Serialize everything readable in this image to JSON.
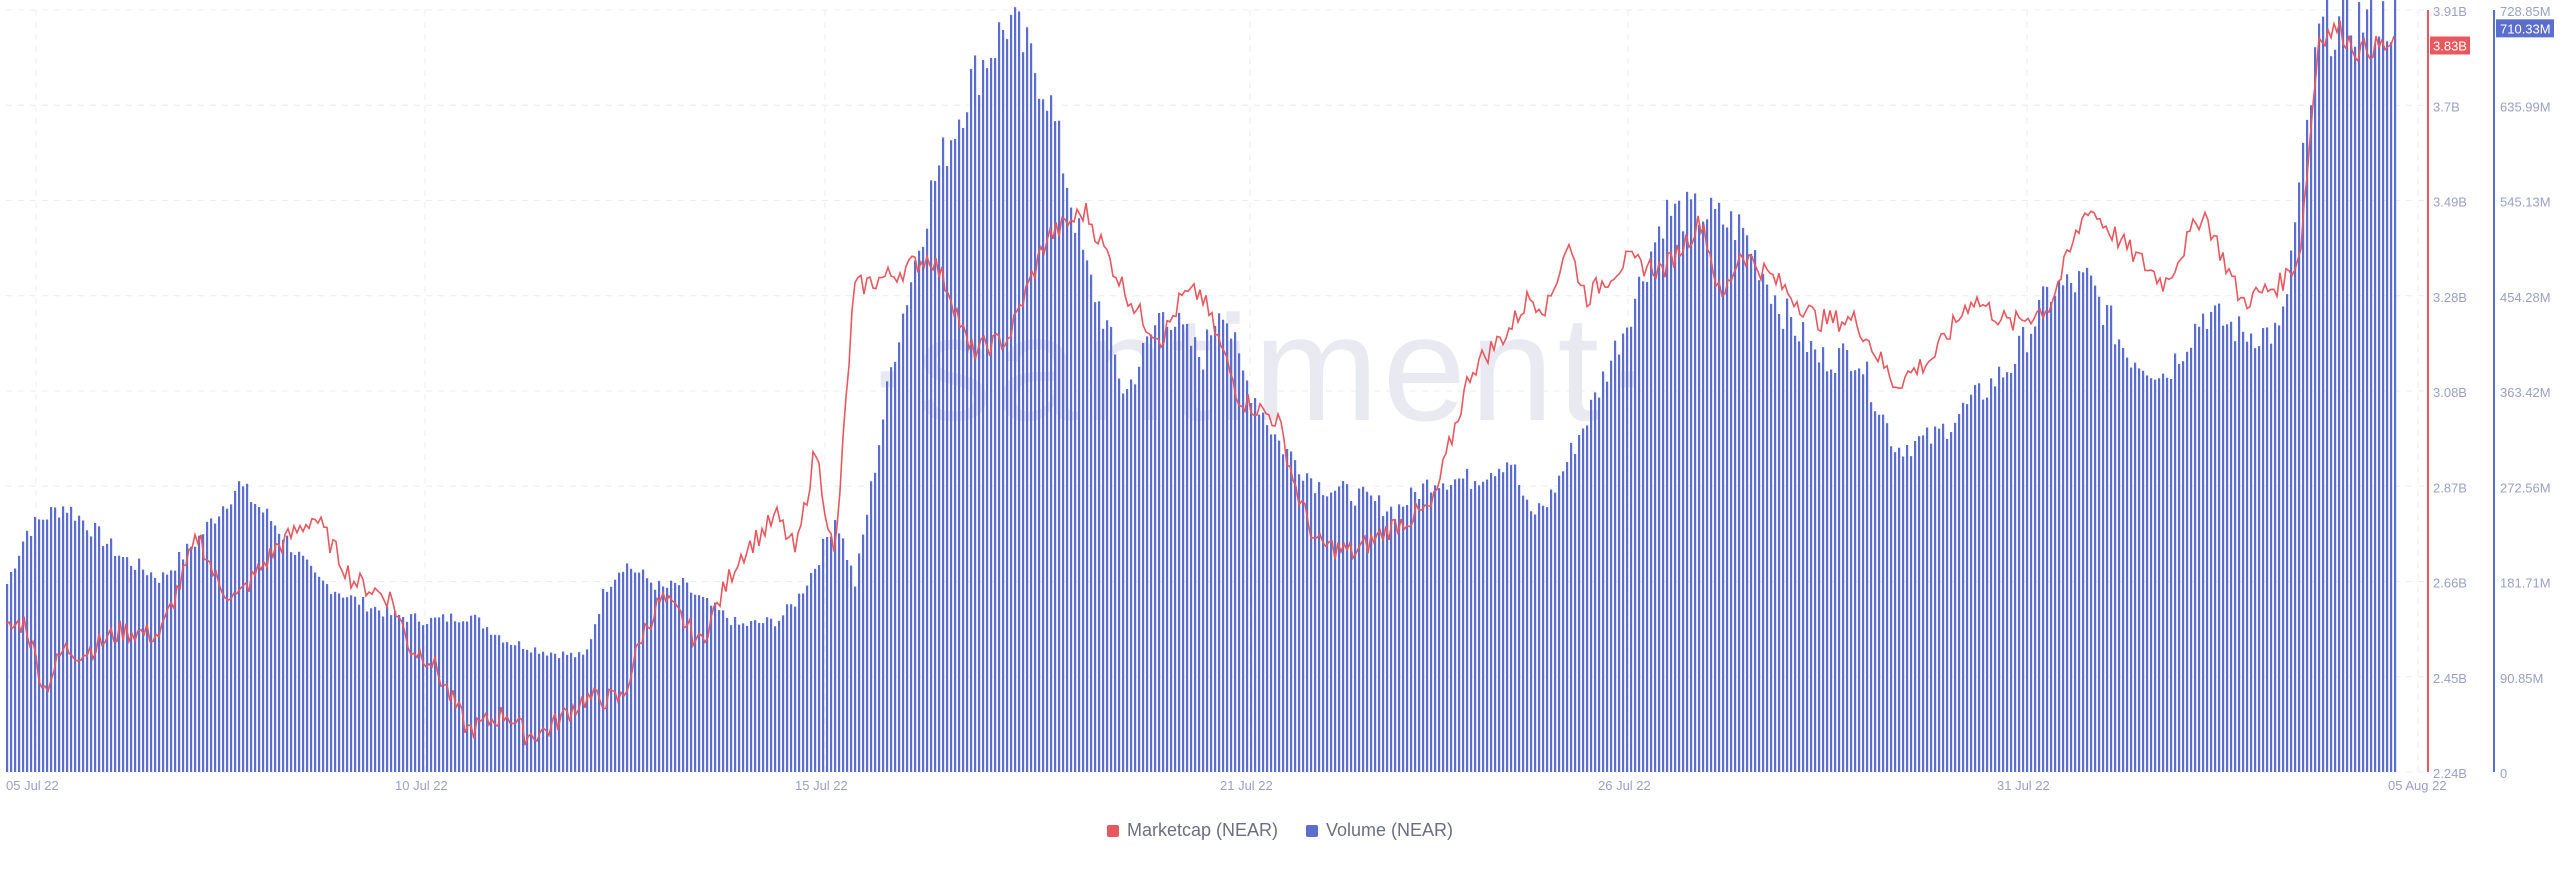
{
  "chart_data": {
    "type": "bar+line",
    "watermark": "·santiment·",
    "x_tick_labels": [
      "05 Jul 22",
      "10 Jul 22",
      "15 Jul 22",
      "21 Jul 22",
      "26 Jul 22",
      "31 Jul 22",
      "05 Aug 22"
    ],
    "left_axis": {
      "name": "Marketcap (NEAR)",
      "ticks": [
        "3.91B",
        "3.7B",
        "3.49B",
        "3.28B",
        "3.08B",
        "2.87B",
        "2.66B",
        "2.45B",
        "2.24B"
      ],
      "range": [
        2.24,
        3.91
      ],
      "unit": "B",
      "current_label": "3.83B"
    },
    "right_axis": {
      "name": "Volume (NEAR)",
      "ticks": [
        "728.85M",
        "635.99M",
        "545.13M",
        "454.28M",
        "363.42M",
        "272.56M",
        "181.71M",
        "90.85M",
        "0"
      ],
      "range": [
        0,
        728.85
      ],
      "unit": "M",
      "current_label": "710.33M"
    },
    "series": [
      {
        "name": "Volume (NEAR)",
        "kind": "bar",
        "axis": "right",
        "color": "#5b6dcd",
        "x_days": [
          0,
          0.5,
          1,
          1.5,
          2,
          3,
          4,
          5,
          6,
          6.5,
          7,
          8,
          9,
          10,
          11,
          12,
          13,
          14,
          15,
          15.5,
          16,
          17,
          17.5,
          18,
          19,
          20,
          20.5,
          21,
          21.5,
          22,
          23,
          24,
          25,
          26,
          27,
          28,
          28.5,
          29,
          30,
          31,
          31.5,
          32,
          33,
          34,
          35,
          36,
          37,
          38,
          39,
          39.5,
          40,
          41,
          42,
          43,
          44,
          45,
          46,
          47,
          48,
          49,
          50,
          51,
          52,
          53,
          54,
          55,
          56,
          57,
          58,
          59,
          60,
          61,
          61.5
        ],
        "values": [
          180,
          230,
          245,
          255,
          240,
          205,
          185,
          225,
          275,
          255,
          235,
          185,
          165,
          150,
          145,
          150,
          125,
          115,
          110,
          175,
          200,
          175,
          180,
          165,
          140,
          145,
          165,
          200,
          245,
          180,
          400,
          560,
          660,
          720,
          650,
          480,
          430,
          360,
          445,
          395,
          455,
          385,
          315,
          275,
          265,
          250,
          280,
          280,
          300,
          245,
          260,
          340,
          430,
          535,
          535,
          520,
          445,
          395,
          400,
          310,
          320,
          355,
          390,
          460,
          470,
          400,
          380,
          440,
          420,
          420,
          710,
          720,
          720
        ]
      },
      {
        "name": "Marketcap (NEAR)",
        "kind": "line",
        "axis": "left",
        "color": "#e8585f",
        "x_days": [
          0,
          0.5,
          1,
          1.5,
          2,
          3,
          4,
          5,
          5.5,
          6,
          7,
          8,
          9,
          10,
          10.5,
          11,
          12,
          13,
          13.5,
          14,
          15,
          16,
          16.5,
          17,
          17.5,
          18,
          19,
          20,
          20.5,
          21,
          21.5,
          22,
          23,
          24,
          24.5,
          25,
          26,
          27,
          28,
          29,
          29.5,
          30,
          30.5,
          31,
          32,
          33,
          33.5,
          34,
          35,
          36,
          37,
          38,
          39,
          39.5,
          40,
          40.5,
          41,
          42,
          43,
          44,
          44.5,
          45,
          46,
          47,
          48,
          49,
          50,
          51,
          52,
          53,
          54,
          55,
          56,
          57,
          58,
          59,
          59.5,
          60,
          60.5,
          61,
          61.5
        ],
        "values": [
          2.55,
          2.57,
          2.42,
          2.51,
          2.5,
          2.55,
          2.54,
          2.76,
          2.65,
          2.62,
          2.73,
          2.8,
          2.66,
          2.62,
          2.51,
          2.49,
          2.33,
          2.37,
          2.32,
          2.33,
          2.4,
          2.4,
          2.54,
          2.62,
          2.58,
          2.52,
          2.71,
          2.8,
          2.72,
          2.95,
          2.7,
          3.3,
          3.33,
          3.37,
          3.29,
          3.16,
          3.19,
          3.41,
          3.47,
          3.3,
          3.23,
          3.19,
          3.28,
          3.29,
          3.06,
          3.01,
          2.85,
          2.74,
          2.72,
          2.78,
          2.82,
          3.12,
          3.21,
          3.28,
          3.26,
          3.4,
          3.28,
          3.36,
          3.34,
          3.45,
          3.27,
          3.38,
          3.31,
          3.23,
          3.23,
          3.09,
          3.15,
          3.28,
          3.22,
          3.26,
          3.48,
          3.39,
          3.31,
          3.47,
          3.27,
          3.31,
          3.37,
          3.85,
          3.87,
          3.82,
          3.83
        ]
      }
    ],
    "legend": [
      {
        "label": "Marketcap (NEAR)",
        "color": "#e8585f"
      },
      {
        "label": "Volume (NEAR)",
        "color": "#5b6dcd"
      }
    ],
    "legend_position": "bottom-center",
    "grid": true
  }
}
